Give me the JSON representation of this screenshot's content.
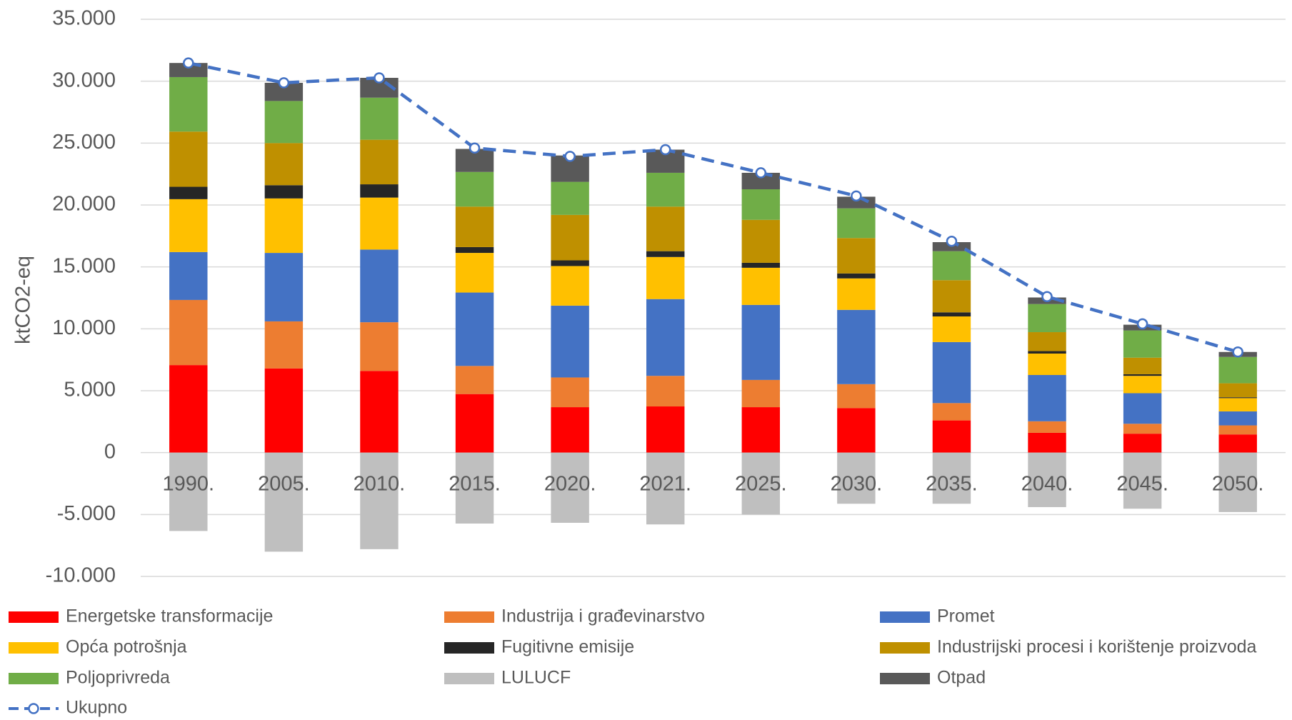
{
  "chart_data": {
    "type": "bar",
    "stacked": true,
    "ylabel": "ktCO2-eq",
    "categories": [
      "1990.",
      "2005.",
      "2010.",
      "2015.",
      "2020.",
      "2021.",
      "2025.",
      "2030.",
      "2035.",
      "2040.",
      "2045.",
      "2050."
    ],
    "ylim": [
      -10000,
      35000
    ],
    "yticks": [
      {
        "value": -10000,
        "label": "-10.000"
      },
      {
        "value": -5000,
        "label": "-5.000"
      },
      0,
      {
        "value": 5000,
        "label": "5.000"
      },
      {
        "value": 10000,
        "label": "10.000"
      },
      {
        "value": 15000,
        "label": "15.000"
      },
      {
        "value": 20000,
        "label": "20.000"
      },
      {
        "value": 25000,
        "label": "25.000"
      },
      {
        "value": 30000,
        "label": "30.000"
      },
      {
        "value": 35000,
        "label": "35.000"
      }
    ],
    "grid": true,
    "legend": "bottom",
    "series": [
      {
        "name": "Energetske transformacije",
        "color": "#ff0000",
        "values": [
          7070,
          6800,
          6600,
          4730,
          3670,
          3730,
          3670,
          3600,
          2600,
          1600,
          1530,
          1470
        ]
      },
      {
        "name": "Industrija i građevinarstvo",
        "color": "#ed7d31",
        "values": [
          5260,
          3800,
          3930,
          2270,
          2400,
          2470,
          2200,
          1930,
          1400,
          930,
          800,
          730
        ]
      },
      {
        "name": "Promet",
        "color": "#4472c4",
        "values": [
          3870,
          5530,
          5870,
          5930,
          5800,
          6200,
          6060,
          6000,
          4930,
          3740,
          2470,
          1130
        ]
      },
      {
        "name": "Opća potrošnja",
        "color": "#ffc000",
        "values": [
          4270,
          4400,
          4200,
          3200,
          3200,
          3400,
          3000,
          2540,
          2070,
          1730,
          1400,
          1070
        ]
      },
      {
        "name": "Fugitivne emisije",
        "color": "#262626",
        "values": [
          1000,
          1070,
          1070,
          470,
          460,
          470,
          400,
          400,
          330,
          200,
          130,
          70
        ]
      },
      {
        "name": "Industrijski procesi i korištenje proizvoda",
        "color": "#bf9000",
        "values": [
          4460,
          3400,
          3600,
          3270,
          3670,
          3600,
          3470,
          2860,
          2600,
          1530,
          1340,
          1130
        ]
      },
      {
        "name": "Poljoprivreda",
        "color": "#70ad47",
        "values": [
          4400,
          3400,
          3400,
          2800,
          2670,
          2730,
          2470,
          2400,
          2340,
          2270,
          2200,
          2130
        ]
      },
      {
        "name": "LULUCF",
        "color": "#bfbfbf",
        "values": [
          -6330,
          -8000,
          -7800,
          -5730,
          -5670,
          -5800,
          -5000,
          -4130,
          -4130,
          -4400,
          -4530,
          -4800
        ]
      },
      {
        "name": "Otpad",
        "color": "#595959",
        "values": [
          1140,
          1470,
          1600,
          1860,
          2130,
          1870,
          1330,
          940,
          730,
          530,
          460,
          400
        ]
      },
      {
        "name": "Ukupno",
        "type": "line",
        "color": "#4472c4",
        "values": [
          31470,
          29870,
          30270,
          24600,
          23930,
          24470,
          22600,
          20730,
          17070,
          12600,
          10400,
          8130
        ]
      }
    ]
  }
}
